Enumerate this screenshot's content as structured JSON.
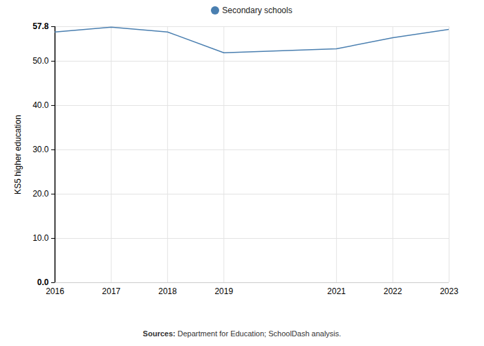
{
  "chart_data": {
    "type": "line",
    "x": [
      2016,
      2017,
      2018,
      2019,
      2021,
      2022,
      2023
    ],
    "series": [
      {
        "name": "Secondary schools",
        "color": "#4a7fb0",
        "values": [
          56.6,
          57.7,
          56.6,
          51.9,
          52.8,
          55.3,
          57.2
        ]
      }
    ],
    "y_label": "KS5 higher education",
    "xlim": [
      2016,
      2023
    ],
    "xticks": [
      2016,
      2017,
      2018,
      2019,
      2021,
      2022,
      2023
    ],
    "ylim": [
      0,
      57.8
    ],
    "yticks": [
      {
        "value": 0,
        "label": "0.0"
      },
      {
        "value": 10,
        "label": "10.0"
      },
      {
        "value": 20,
        "label": "20.0"
      },
      {
        "value": 30,
        "label": "30.0"
      },
      {
        "value": 40,
        "label": "40.0"
      },
      {
        "value": 50,
        "label": "50.0"
      },
      57.8
    ],
    "grid": true,
    "legend": "top",
    "caption_label": "Sources:",
    "caption": "Department for Education; SchoolDash analysis."
  }
}
